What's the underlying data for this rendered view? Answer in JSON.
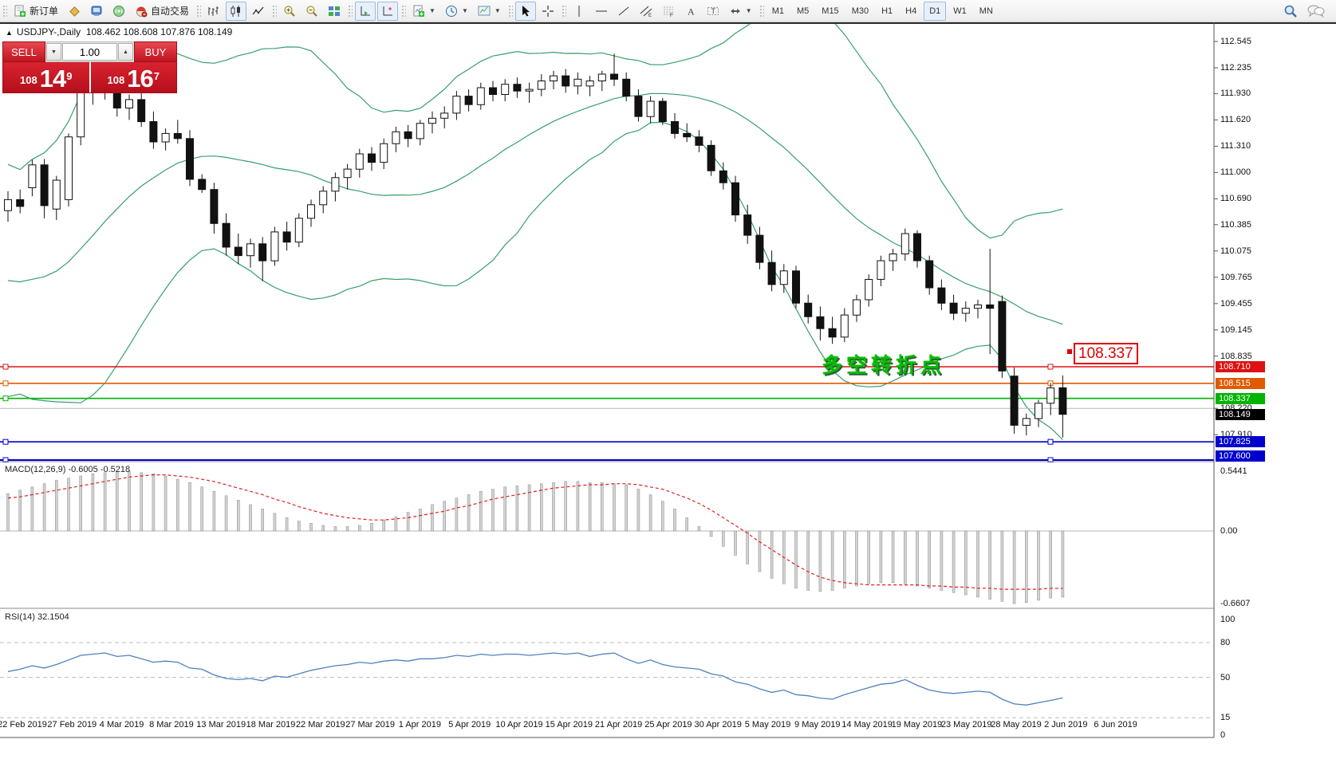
{
  "toolbar": {
    "new_order_label": "新订单",
    "autotrading_label": "自动交易",
    "groups": [
      [
        {
          "name": "new-order-button",
          "icon": "doc-plus",
          "label_key": "new_order_label"
        },
        {
          "name": "metaeditor-button",
          "icon": "diamond"
        },
        {
          "name": "terminal-button",
          "icon": "monitor"
        },
        {
          "name": "signals-button",
          "icon": "signal"
        },
        {
          "name": "autotrading-button",
          "icon": "robot",
          "label_key": "autotrading_label"
        }
      ],
      [
        {
          "name": "bar-chart-button",
          "icon": "bars"
        },
        {
          "name": "candlestick-button",
          "icon": "candles",
          "active": true
        },
        {
          "name": "line-chart-button",
          "icon": "linechart"
        }
      ],
      [
        {
          "name": "zoom-in-button",
          "icon": "zoom-in"
        },
        {
          "name": "zoom-out-button",
          "icon": "zoom-out"
        },
        {
          "name": "tile-windows-button",
          "icon": "tiles"
        }
      ],
      [
        {
          "name": "auto-scroll-button",
          "icon": "autoscroll",
          "active": true
        },
        {
          "name": "chart-shift-button",
          "icon": "chartshift",
          "active": true
        }
      ],
      [
        {
          "name": "indicators-button",
          "icon": "indicator",
          "dropdown": true
        },
        {
          "name": "periods-button",
          "icon": "clock",
          "dropdown": true
        },
        {
          "name": "templates-button",
          "icon": "template",
          "dropdown": true
        }
      ],
      [
        {
          "name": "cursor-button",
          "icon": "cursor",
          "active": true
        },
        {
          "name": "crosshair-button",
          "icon": "crosshair"
        }
      ],
      [
        {
          "name": "vertical-line-button",
          "icon": "vline"
        },
        {
          "name": "horizontal-line-button",
          "icon": "hline"
        },
        {
          "name": "trendline-button",
          "icon": "trendline"
        },
        {
          "name": "channel-button",
          "icon": "channel"
        },
        {
          "name": "fibonacci-button",
          "icon": "fibo"
        },
        {
          "name": "text-button",
          "icon": "textA"
        },
        {
          "name": "text-label-button",
          "icon": "labelT"
        },
        {
          "name": "arrows-button",
          "icon": "arrows",
          "dropdown": true
        }
      ]
    ],
    "timeframes": [
      "M1",
      "M5",
      "M15",
      "M30",
      "H1",
      "H4",
      "D1",
      "W1",
      "MN"
    ],
    "active_timeframe": "D1"
  },
  "chart": {
    "collapse_arrow": "▲",
    "title_symbol": "USDJPY-,Daily",
    "title_ohlc": "108.462 108.608 107.876 108.149",
    "one_click": {
      "sell_label": "SELL",
      "buy_label": "BUY",
      "volume": "1.00",
      "sell_big": "108",
      "sell_main": "14",
      "sell_sup": "9",
      "buy_big": "108",
      "buy_main": "16",
      "buy_sup": "7",
      "spinner_down": "▼",
      "spinner_up": "▲"
    },
    "macd_label": "MACD(12,26,9) -0.6005 -0.5218",
    "rsi_label": "RSI(14) 32.1504",
    "annotation": "多空转折点",
    "callout_price": "108.337"
  },
  "price_axis": {
    "ticks": [
      112.545,
      112.235,
      111.93,
      111.62,
      111.31,
      111.0,
      110.69,
      110.385,
      110.075,
      109.765,
      109.455,
      109.145,
      108.835,
      108.22,
      107.91
    ],
    "tags": [
      {
        "text": "108.710",
        "price": 108.71,
        "color": "#dd1111"
      },
      {
        "text": "108.515",
        "price": 108.515,
        "color": "#e05a00"
      },
      {
        "text": "108.337",
        "price": 108.337,
        "color": "#00b400"
      },
      {
        "text": "108.149",
        "price": 108.149,
        "color": "#000000"
      },
      {
        "text": "107.825",
        "price": 107.825,
        "color": "#0000cc"
      },
      {
        "text": "107.600",
        "price": 107.6,
        "color": "#0000cc"
      }
    ]
  },
  "macd_axis": {
    "ticks": [
      {
        "text": "0.5441",
        "value": 0.5441
      },
      {
        "text": "0.00",
        "value": 0.0
      },
      {
        "text": "-0.6607",
        "value": -0.6607
      }
    ]
  },
  "rsi_axis": {
    "ticks": [
      {
        "text": "100",
        "value": 100
      },
      {
        "text": "80",
        "value": 80
      },
      {
        "text": "50",
        "value": 50
      },
      {
        "text": "15",
        "value": 15
      },
      {
        "text": "0",
        "value": 0
      }
    ],
    "levels": [
      80,
      50,
      15
    ]
  },
  "date_axis": [
    "22 Feb 2019",
    "27 Feb 2019",
    "4 Mar 2019",
    "8 Mar 2019",
    "13 Mar 2019",
    "18 Mar 2019",
    "22 Mar 2019",
    "27 Mar 2019",
    "1 Apr 2019",
    "5 Apr 2019",
    "10 Apr 2019",
    "15 Apr 2019",
    "21 Apr 2019",
    "25 Apr 2019",
    "30 Apr 2019",
    "5 May 2019",
    "9 May 2019",
    "14 May 2019",
    "19 May 2019",
    "23 May 2019",
    "28 May 2019",
    "2 Jun 2019",
    "6 Jun 2019"
  ],
  "chart_data": {
    "type": "candlestick",
    "symbol": "USDJPY",
    "period": "Daily",
    "last_bar_ohlc": [
      108.462,
      108.608,
      107.876,
      108.149
    ],
    "bid": 108.149,
    "indicators": [
      "Bollinger Bands(20,2)",
      "MACD(12,26,9)",
      "RSI(14)"
    ],
    "hlines": [
      {
        "price": 108.71,
        "color": "#dd1111",
        "width": 1.6
      },
      {
        "price": 108.515,
        "color": "#e05a00",
        "width": 1.6
      },
      {
        "price": 108.337,
        "color": "#00b400",
        "width": 1.6
      },
      {
        "price": 108.22,
        "color": "#b8b8b8",
        "width": 1
      },
      {
        "price": 107.825,
        "color": "#0000cc",
        "width": 1.6
      },
      {
        "price": 107.6,
        "color": "#0000cc",
        "width": 2
      }
    ],
    "candles": [
      [
        110.55,
        110.78,
        110.42,
        110.68
      ],
      [
        110.68,
        110.8,
        110.52,
        110.6
      ],
      [
        110.82,
        111.15,
        110.72,
        111.09
      ],
      [
        111.09,
        111.16,
        110.46,
        110.61
      ],
      [
        110.57,
        110.96,
        110.44,
        110.91
      ],
      [
        110.68,
        111.46,
        110.6,
        111.42
      ],
      [
        111.42,
        112.06,
        111.32,
        112.0
      ],
      [
        112.0,
        112.12,
        111.8,
        111.96
      ],
      [
        111.96,
        112.1,
        111.86,
        112.06
      ],
      [
        112.06,
        112.1,
        111.66,
        111.76
      ],
      [
        111.76,
        111.92,
        111.62,
        111.86
      ],
      [
        111.86,
        111.96,
        111.54,
        111.6
      ],
      [
        111.6,
        111.72,
        111.28,
        111.36
      ],
      [
        111.36,
        111.52,
        111.26,
        111.46
      ],
      [
        111.46,
        111.62,
        111.34,
        111.4
      ],
      [
        111.4,
        111.5,
        110.84,
        110.92
      ],
      [
        110.92,
        110.98,
        110.76,
        110.8
      ],
      [
        110.8,
        110.88,
        110.28,
        110.4
      ],
      [
        110.4,
        110.52,
        110.02,
        110.12
      ],
      [
        110.12,
        110.28,
        109.92,
        110.02
      ],
      [
        110.02,
        110.22,
        109.88,
        110.16
      ],
      [
        110.16,
        110.24,
        109.72,
        109.96
      ],
      [
        109.96,
        110.36,
        109.9,
        110.3
      ],
      [
        110.3,
        110.42,
        110.08,
        110.18
      ],
      [
        110.18,
        110.52,
        110.12,
        110.46
      ],
      [
        110.46,
        110.68,
        110.36,
        110.62
      ],
      [
        110.62,
        110.84,
        110.52,
        110.78
      ],
      [
        110.78,
        111.0,
        110.66,
        110.94
      ],
      [
        110.94,
        111.1,
        110.8,
        111.04
      ],
      [
        111.04,
        111.28,
        110.94,
        111.22
      ],
      [
        111.22,
        111.3,
        111.02,
        111.12
      ],
      [
        111.12,
        111.4,
        111.04,
        111.34
      ],
      [
        111.34,
        111.54,
        111.24,
        111.48
      ],
      [
        111.48,
        111.56,
        111.3,
        111.4
      ],
      [
        111.4,
        111.62,
        111.32,
        111.58
      ],
      [
        111.58,
        111.72,
        111.46,
        111.64
      ],
      [
        111.64,
        111.78,
        111.52,
        111.7
      ],
      [
        111.7,
        111.96,
        111.62,
        111.9
      ],
      [
        111.9,
        111.98,
        111.72,
        111.8
      ],
      [
        111.8,
        112.06,
        111.74,
        112.0
      ],
      [
        112.0,
        112.08,
        111.84,
        111.92
      ],
      [
        111.92,
        112.1,
        111.84,
        112.04
      ],
      [
        112.04,
        112.12,
        111.88,
        111.96
      ],
      [
        111.96,
        112.06,
        111.82,
        111.98
      ],
      [
        111.98,
        112.16,
        111.9,
        112.08
      ],
      [
        112.08,
        112.2,
        111.98,
        112.14
      ],
      [
        112.14,
        112.22,
        111.94,
        112.02
      ],
      [
        112.02,
        112.18,
        111.92,
        112.1
      ],
      [
        112.02,
        112.14,
        111.9,
        112.08
      ],
      [
        112.08,
        112.2,
        111.96,
        112.16
      ],
      [
        112.16,
        112.4,
        112.02,
        112.1
      ],
      [
        112.1,
        112.18,
        111.84,
        111.9
      ],
      [
        111.9,
        111.98,
        111.6,
        111.66
      ],
      [
        111.66,
        111.9,
        111.58,
        111.84
      ],
      [
        111.84,
        111.88,
        111.56,
        111.6
      ],
      [
        111.6,
        111.7,
        111.4,
        111.46
      ],
      [
        111.46,
        111.58,
        111.36,
        111.42
      ],
      [
        111.42,
        111.5,
        111.24,
        111.32
      ],
      [
        111.32,
        111.38,
        110.96,
        111.02
      ],
      [
        111.02,
        111.12,
        110.8,
        110.88
      ],
      [
        110.88,
        110.96,
        110.42,
        110.5
      ],
      [
        110.5,
        110.62,
        110.16,
        110.26
      ],
      [
        110.26,
        110.36,
        109.86,
        109.94
      ],
      [
        109.94,
        110.08,
        109.6,
        109.68
      ],
      [
        109.68,
        109.92,
        109.58,
        109.84
      ],
      [
        109.84,
        109.9,
        109.4,
        109.46
      ],
      [
        109.46,
        109.56,
        109.22,
        109.3
      ],
      [
        109.3,
        109.42,
        109.02,
        109.16
      ],
      [
        109.16,
        109.3,
        108.98,
        109.06
      ],
      [
        109.06,
        109.4,
        109.0,
        109.32
      ],
      [
        109.32,
        109.56,
        109.24,
        109.5
      ],
      [
        109.5,
        109.8,
        109.42,
        109.74
      ],
      [
        109.74,
        110.02,
        109.66,
        109.96
      ],
      [
        109.96,
        110.1,
        109.84,
        110.04
      ],
      [
        110.04,
        110.34,
        109.96,
        110.28
      ],
      [
        110.28,
        110.32,
        109.88,
        109.96
      ],
      [
        109.96,
        110.02,
        109.56,
        109.64
      ],
      [
        109.64,
        109.74,
        109.38,
        109.46
      ],
      [
        109.46,
        109.56,
        109.26,
        109.34
      ],
      [
        109.34,
        109.48,
        109.24,
        109.4
      ],
      [
        109.4,
        109.5,
        109.28,
        109.44
      ],
      [
        109.44,
        110.1,
        108.86,
        109.4
      ],
      [
        109.48,
        109.55,
        108.58,
        108.66
      ],
      [
        108.6,
        108.7,
        107.92,
        108.02
      ],
      [
        108.02,
        108.16,
        107.9,
        108.1
      ],
      [
        108.1,
        108.32,
        108.0,
        108.28
      ],
      [
        108.28,
        108.52,
        108.14,
        108.46
      ],
      [
        108.462,
        108.608,
        107.876,
        108.149
      ]
    ],
    "closes_history": [
      111.2,
      110.9,
      110.5,
      110.0,
      109.6,
      109.2,
      108.95,
      108.8,
      108.75,
      108.8,
      108.95,
      109.15,
      109.4,
      109.6,
      109.8,
      110.0,
      110.15,
      110.3,
      110.45,
      110.55
    ],
    "bollinger": {
      "period": 20,
      "deviation": 2
    },
    "macd_hist": [
      0.34,
      0.37,
      0.4,
      0.43,
      0.46,
      0.48,
      0.5,
      0.52,
      0.53,
      0.54,
      0.5441,
      0.53,
      0.52,
      0.5,
      0.47,
      0.44,
      0.4,
      0.36,
      0.32,
      0.28,
      0.24,
      0.2,
      0.16,
      0.12,
      0.09,
      0.07,
      0.05,
      0.04,
      0.04,
      0.05,
      0.07,
      0.1,
      0.13,
      0.17,
      0.2,
      0.24,
      0.27,
      0.3,
      0.33,
      0.36,
      0.38,
      0.4,
      0.41,
      0.42,
      0.43,
      0.44,
      0.45,
      0.45,
      0.44,
      0.44,
      0.43,
      0.42,
      0.38,
      0.33,
      0.27,
      0.2,
      0.12,
      0.04,
      -0.05,
      -0.14,
      -0.22,
      -0.3,
      -0.37,
      -0.43,
      -0.48,
      -0.52,
      -0.54,
      -0.55,
      -0.54,
      -0.52,
      -0.5,
      -0.48,
      -0.47,
      -0.47,
      -0.48,
      -0.5,
      -0.52,
      -0.54,
      -0.56,
      -0.58,
      -0.6,
      -0.62,
      -0.64,
      -0.6607,
      -0.65,
      -0.63,
      -0.61,
      -0.6005
    ],
    "macd_signal": [
      0.3,
      0.31,
      0.33,
      0.35,
      0.37,
      0.39,
      0.41,
      0.43,
      0.45,
      0.47,
      0.49,
      0.5,
      0.51,
      0.51,
      0.5,
      0.49,
      0.47,
      0.45,
      0.42,
      0.39,
      0.36,
      0.33,
      0.29,
      0.26,
      0.22,
      0.19,
      0.16,
      0.14,
      0.12,
      0.11,
      0.1,
      0.1,
      0.11,
      0.12,
      0.14,
      0.16,
      0.18,
      0.21,
      0.23,
      0.26,
      0.29,
      0.31,
      0.33,
      0.35,
      0.37,
      0.39,
      0.4,
      0.41,
      0.42,
      0.42,
      0.43,
      0.43,
      0.42,
      0.4,
      0.38,
      0.34,
      0.3,
      0.25,
      0.19,
      0.12,
      0.05,
      -0.02,
      -0.1,
      -0.17,
      -0.24,
      -0.31,
      -0.37,
      -0.42,
      -0.45,
      -0.47,
      -0.48,
      -0.49,
      -0.49,
      -0.49,
      -0.49,
      -0.49,
      -0.5,
      -0.5,
      -0.51,
      -0.51,
      -0.52,
      -0.52,
      -0.53,
      -0.53,
      -0.53,
      -0.53,
      -0.52,
      -0.5218
    ],
    "rsi": [
      55,
      57,
      60,
      58,
      61,
      65,
      69,
      70,
      71,
      68,
      69,
      66,
      63,
      64,
      63,
      58,
      57,
      52,
      49,
      48,
      49,
      47,
      51,
      50,
      53,
      56,
      58,
      60,
      61,
      63,
      62,
      64,
      65,
      64,
      66,
      66,
      67,
      69,
      68,
      70,
      69,
      70,
      70,
      69,
      70,
      71,
      70,
      71,
      68,
      70,
      71,
      66,
      62,
      65,
      61,
      59,
      58,
      57,
      53,
      51,
      46,
      44,
      40,
      37,
      39,
      35,
      34,
      32,
      31,
      35,
      38,
      41,
      44,
      45,
      48,
      43,
      39,
      37,
      36,
      37,
      38,
      37,
      31,
      27,
      26,
      28,
      30,
      32.15
    ]
  }
}
